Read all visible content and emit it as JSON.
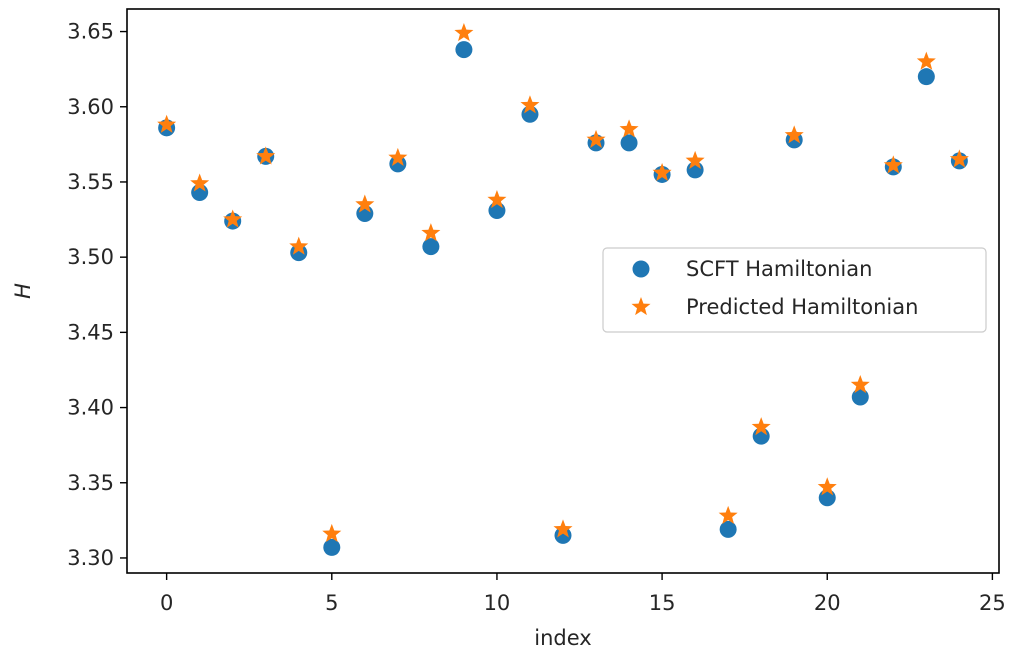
{
  "chart_data": {
    "type": "scatter",
    "title": "",
    "xlabel": "index",
    "ylabel": "H",
    "xlim": [
      -1.2,
      25.2
    ],
    "ylim": [
      3.29,
      3.665
    ],
    "x_ticks": [
      0,
      5,
      10,
      15,
      20,
      25
    ],
    "y_ticks": [
      3.3,
      3.35,
      3.4,
      3.45,
      3.5,
      3.55,
      3.6,
      3.65
    ],
    "y_tick_labels": [
      "3.30",
      "3.35",
      "3.40",
      "3.45",
      "3.50",
      "3.55",
      "3.60",
      "3.65"
    ],
    "x_tick_labels": [
      "0",
      "5",
      "10",
      "15",
      "20",
      "25"
    ],
    "grid": false,
    "legend_position": "center-right",
    "x": [
      0,
      1,
      2,
      3,
      4,
      5,
      6,
      7,
      8,
      9,
      10,
      11,
      12,
      13,
      14,
      15,
      16,
      17,
      18,
      19,
      20,
      21,
      22,
      23,
      24
    ],
    "series": [
      {
        "name": "SCFT Hamiltonian",
        "marker": "circle",
        "color": "#1f77b4",
        "values": [
          3.586,
          3.543,
          3.524,
          3.567,
          3.503,
          3.307,
          3.529,
          3.562,
          3.507,
          3.638,
          3.531,
          3.595,
          3.315,
          3.576,
          3.576,
          3.555,
          3.558,
          3.319,
          3.381,
          3.578,
          3.34,
          3.407,
          3.56,
          3.62,
          3.564
        ]
      },
      {
        "name": "Predicted Hamiltonian",
        "marker": "star",
        "color": "#ff7f0e",
        "values": [
          3.588,
          3.549,
          3.525,
          3.567,
          3.507,
          3.316,
          3.535,
          3.566,
          3.516,
          3.649,
          3.538,
          3.601,
          3.319,
          3.578,
          3.585,
          3.556,
          3.564,
          3.328,
          3.387,
          3.581,
          3.347,
          3.415,
          3.561,
          3.63,
          3.565
        ]
      }
    ]
  }
}
